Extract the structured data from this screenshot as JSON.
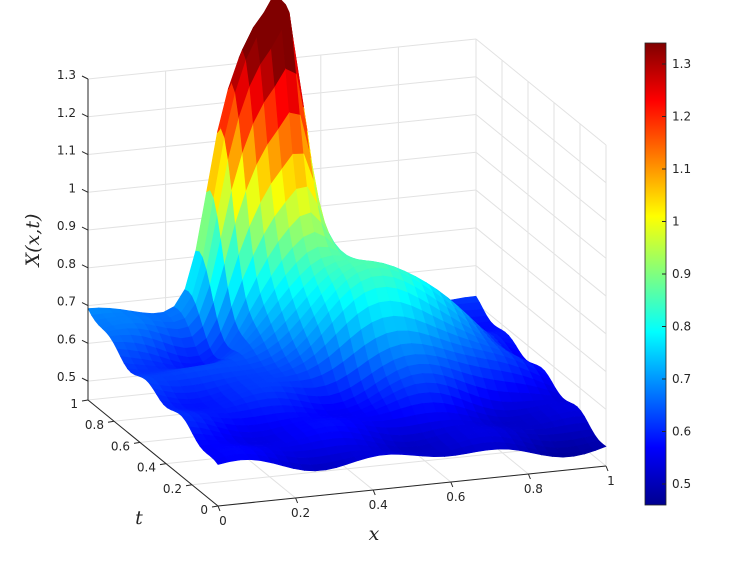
{
  "chart_data": {
    "type": "surface",
    "xlabel": "x",
    "ylabel": "t",
    "zlabel": "X(x,t)",
    "xlim": [
      0,
      1
    ],
    "ylim": [
      0,
      1
    ],
    "zlim": [
      0.45,
      1.3
    ],
    "x_ticks": [
      "0",
      "0.2",
      "0.4",
      "0.6",
      "0.8",
      "1"
    ],
    "t_ticks": [
      "0",
      "0.2",
      "0.4",
      "0.6",
      "0.8",
      "1"
    ],
    "z_ticks": [
      "0.5",
      "0.6",
      "0.7",
      "0.8",
      "0.9",
      "1",
      "1.1",
      "1.2",
      "1.3"
    ],
    "colormap": "jet",
    "clim": [
      0.46,
      1.34
    ],
    "colorbar_ticks": [
      "0.5",
      "0.6",
      "0.7",
      "0.8",
      "0.9",
      "1",
      "1.1",
      "1.2",
      "1.3"
    ],
    "grid": true,
    "features": [
      {
        "x": 0.0,
        "t": 1.0,
        "z": 0.66
      },
      {
        "x": 0.2,
        "t": 0.95,
        "z": 0.7
      },
      {
        "x": 0.34,
        "t": 1.0,
        "z": 0.98
      },
      {
        "x": 0.42,
        "t": 1.0,
        "z": 1.13
      },
      {
        "x": 0.5,
        "t": 1.0,
        "z": 1.23
      },
      {
        "x": 0.55,
        "t": 0.8,
        "z": 0.92
      },
      {
        "x": 0.62,
        "t": 0.6,
        "z": 0.9
      },
      {
        "x": 0.2,
        "t": 0.75,
        "z": 0.5
      },
      {
        "x": 0.4,
        "t": 0.4,
        "z": 0.55
      },
      {
        "x": 1.0,
        "t": 0.0,
        "z": 0.48
      },
      {
        "x": 1.0,
        "t": 1.0,
        "z": 0.6
      }
    ]
  }
}
